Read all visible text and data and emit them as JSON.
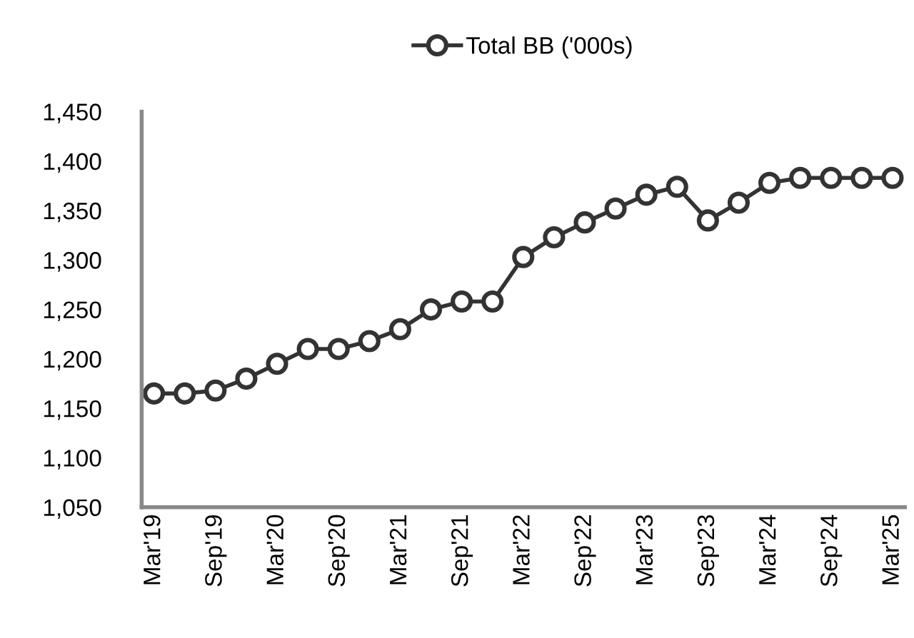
{
  "chart_data": {
    "type": "line",
    "categories": [
      "Mar'19",
      null,
      "Sep'19",
      null,
      "Mar'20",
      null,
      "Sep'20",
      null,
      "Mar'21",
      null,
      "Sep'21",
      null,
      "Mar'22",
      null,
      "Sep'22",
      null,
      "Mar'23",
      null,
      "Sep'23",
      null,
      "Mar'24",
      null,
      "Sep'24",
      null,
      "Mar'25"
    ],
    "series": [
      {
        "name": "Total BB ('000s)",
        "color": "#333333",
        "values": [
          1165,
          1165,
          1168,
          1180,
          1195,
          1210,
          1210,
          1218,
          1230,
          1250,
          1258,
          1258,
          1303,
          1323,
          1338,
          1352,
          1366,
          1374,
          1340,
          1358,
          1378,
          1383,
          1383,
          1383,
          1383
        ]
      }
    ],
    "ylim": [
      1050,
      1450
    ],
    "yticks": [
      {
        "value": 1050,
        "label": "1,050"
      },
      {
        "value": 1100,
        "label": "1,100"
      },
      {
        "value": 1150,
        "label": "1,150"
      },
      {
        "value": 1200,
        "label": "1,200"
      },
      {
        "value": 1250,
        "label": "1,250"
      },
      {
        "value": 1300,
        "label": "1,300"
      },
      {
        "value": 1350,
        "label": "1,350"
      },
      {
        "value": 1400,
        "label": "1,400"
      },
      {
        "value": 1450,
        "label": "1,450"
      }
    ],
    "grid": false,
    "legend": "top",
    "marker": "circle",
    "line_style": "solid"
  }
}
